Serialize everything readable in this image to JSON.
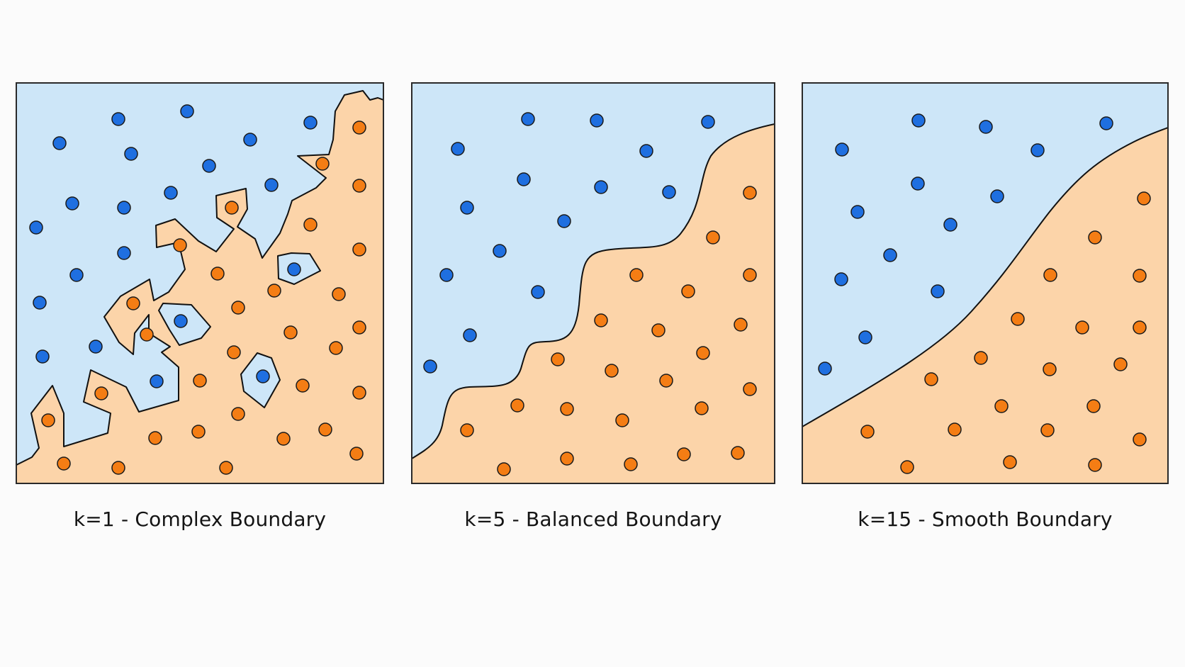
{
  "colors": {
    "class_a_region": "#cde6f8",
    "class_b_region": "#fcd4a9",
    "class_a_point": "#1f6fe0",
    "class_b_point": "#f47d14",
    "boundary": "#111111",
    "frame": "#2a2a2a",
    "background": "#fbfbfb"
  },
  "panels": [
    {
      "id": "k1",
      "caption": "k=1 - Complex Boundary"
    },
    {
      "id": "k5",
      "caption": "k=5 - Balanced Boundary"
    },
    {
      "id": "k15",
      "caption": "k=15 - Smooth Boundary"
    }
  ]
}
